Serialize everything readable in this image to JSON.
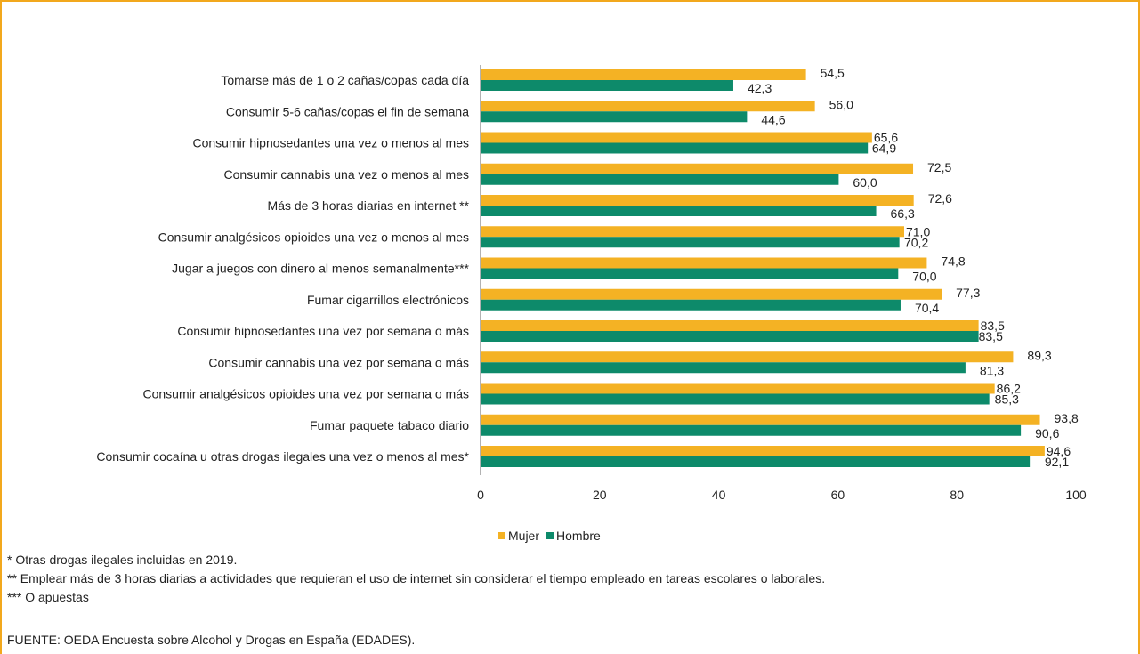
{
  "colors": {
    "mujer": "#f4b224",
    "hombre": "#0d8a6a",
    "border": "#f2a81d",
    "axis": "#666666"
  },
  "chart_data": {
    "type": "bar",
    "orientation": "horizontal",
    "categories": [
      "Tomarse más de 1 o 2 cañas/copas cada día",
      "Consumir 5-6 cañas/copas el fin de semana",
      "Consumir hipnosedantes una vez o menos al mes",
      "Consumir cannabis una vez o menos al mes",
      "Más de 3 horas diarias en internet **",
      "Consumir analgésicos opioides una vez o menos al mes",
      "Jugar a juegos con dinero al menos semanalmente***",
      "Fumar cigarrillos electrónicos",
      "Consumir hipnosedantes una vez por semana o más",
      "Consumir cannabis una vez por semana o más",
      "Consumir analgésicos opioides una vez por semana o más",
      "Fumar paquete tabaco diario",
      "Consumir cocaína u otras drogas ilegales una vez o menos al mes*"
    ],
    "series": [
      {
        "name": "Mujer",
        "values": [
          54.5,
          56.0,
          65.6,
          72.5,
          72.6,
          71.0,
          74.8,
          77.3,
          83.5,
          89.3,
          86.2,
          93.8,
          94.6
        ],
        "labels": [
          "54,5",
          "56,0",
          "65,6",
          "72,5",
          "72,6",
          "71,0",
          "74,8",
          "77,3",
          "83,5",
          "89,3",
          "86,2",
          "93,8",
          "94,6"
        ]
      },
      {
        "name": "Hombre",
        "values": [
          42.3,
          44.6,
          64.9,
          60.0,
          66.3,
          70.2,
          70.0,
          70.4,
          83.5,
          81.3,
          85.3,
          90.6,
          92.1
        ],
        "labels": [
          "42,3",
          "44,6",
          "64,9",
          "60,0",
          "66,3",
          "70,2",
          "70,0",
          "70,4",
          "83,5",
          "81,3",
          "85,3",
          "90,6",
          "92,1"
        ]
      }
    ],
    "xlim": [
      0,
      100
    ],
    "xticks": [
      0,
      20,
      40,
      60,
      80,
      100
    ],
    "xtick_labels": [
      "0",
      "20",
      "40",
      "60",
      "80",
      "100"
    ],
    "grid": false,
    "legend_position": "bottom-center",
    "title": "",
    "xlabel": "",
    "ylabel": ""
  },
  "legend": {
    "mujer": "Mujer",
    "hombre": "Hombre"
  },
  "notes": {
    "note1": "* Otras drogas ilegales incluidas en 2019.",
    "note2": "** Emplear más de 3 horas diarias a actividades que requieran el uso de internet sin considerar el tiempo empleado en tareas escolares o laborales.",
    "note3": "*** O apuestas"
  },
  "source": "FUENTE: OEDA Encuesta sobre Alcohol y Drogas en España (EDADES)."
}
